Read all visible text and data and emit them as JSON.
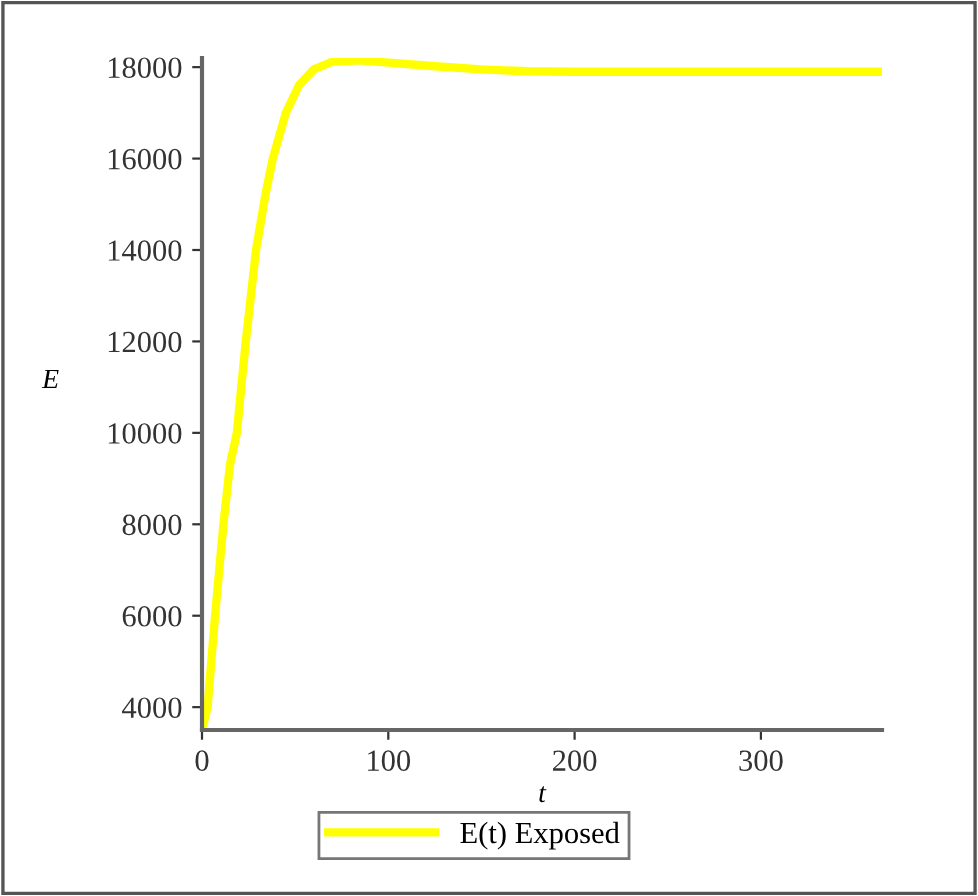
{
  "chart_data": {
    "type": "line",
    "xlabel": "t",
    "ylabel": "E",
    "x": [
      0,
      3,
      7,
      11.5,
      15,
      18.7,
      23.5,
      29,
      34,
      38,
      45,
      52,
      60,
      70,
      85,
      100,
      125,
      150,
      175,
      200,
      250,
      300,
      365
    ],
    "series": [
      {
        "name": "E(t) Exposed",
        "color": "#ffff00",
        "values": [
          3500,
          4000,
          6000,
          8000,
          9300,
          10000,
          12000,
          14000,
          15200,
          16000,
          17000,
          17600,
          17950,
          18120,
          18150,
          18100,
          18020,
          17950,
          17910,
          17900,
          17900,
          17900,
          17900
        ]
      }
    ],
    "xlim": [
      0,
      365
    ],
    "ylim": [
      3500,
      18200
    ],
    "xticks": [
      0,
      100,
      200,
      300
    ],
    "yticks": [
      4000,
      6000,
      8000,
      10000,
      12000,
      14000,
      16000,
      18000
    ],
    "grid": false,
    "legend": "bottom",
    "marker": "none",
    "line_style": "solid"
  }
}
